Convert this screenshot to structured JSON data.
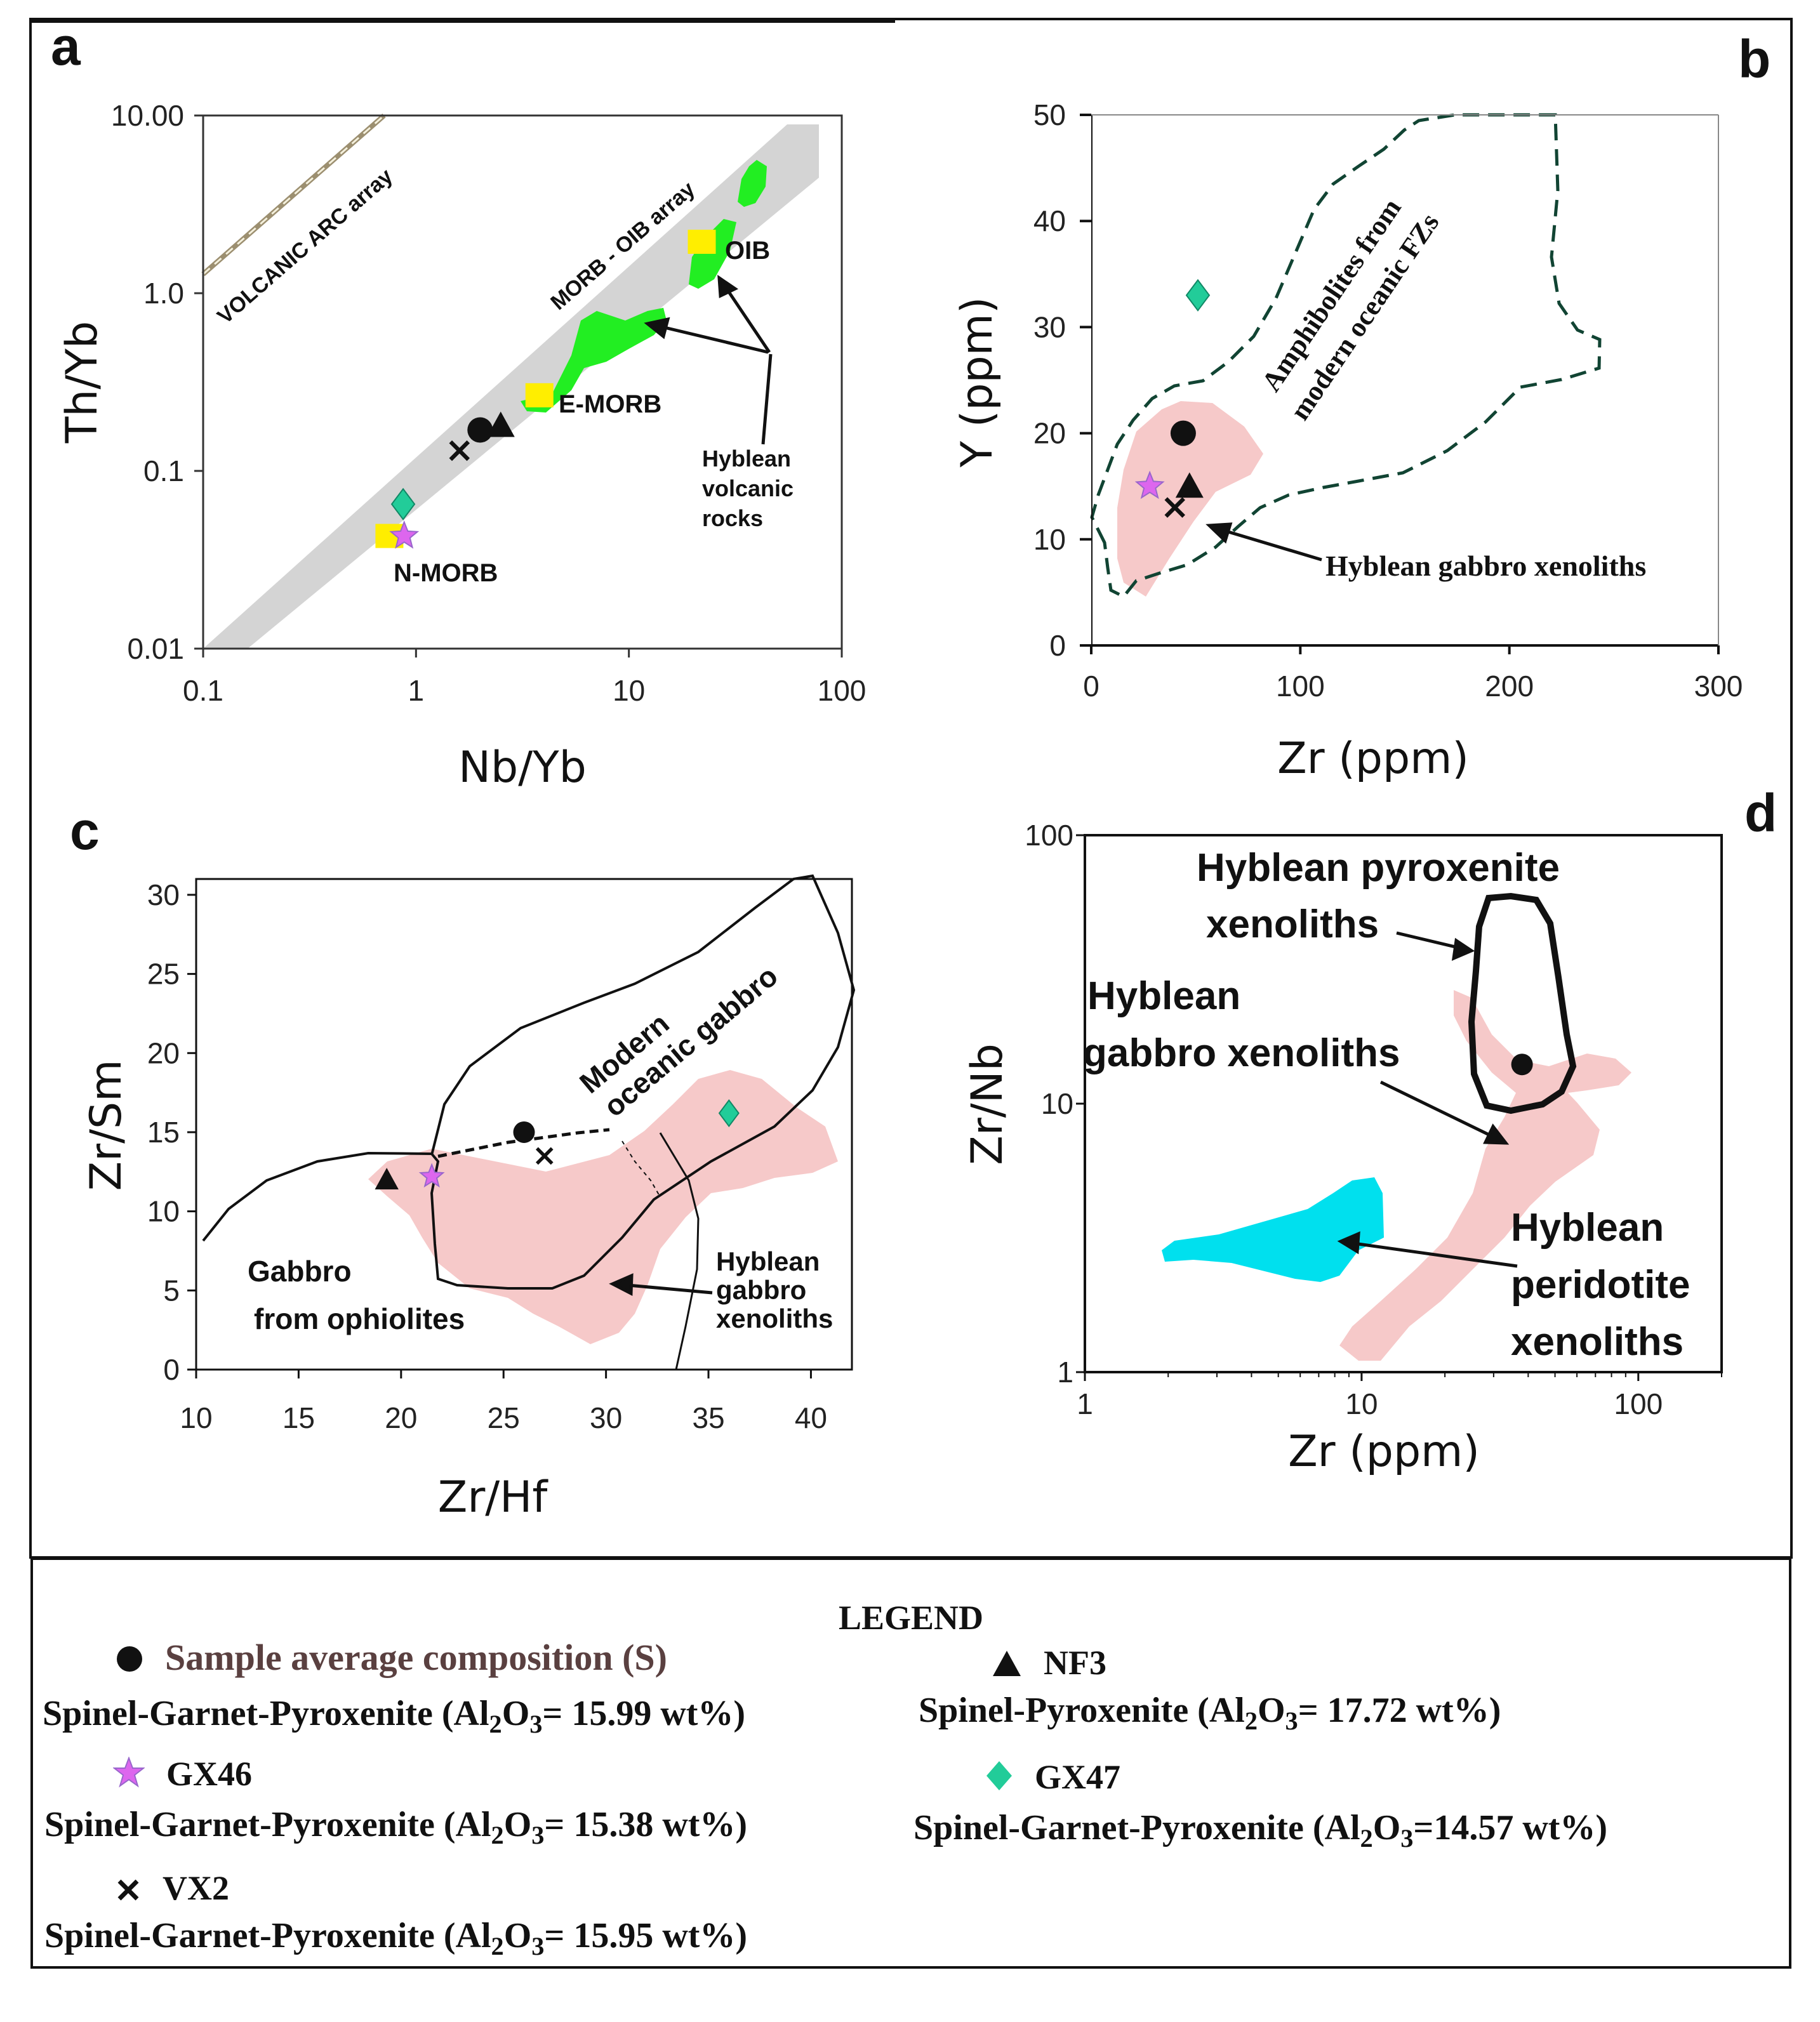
{
  "chart_data": [
    {
      "panel": "a",
      "type": "scatter",
      "xscale": "log",
      "yscale": "log",
      "xlim": [
        0.1,
        100
      ],
      "ylim": [
        0.01,
        10
      ],
      "xlabel": "Nb/Yb",
      "ylabel": "Th/Yb",
      "xticks": [
        "0.1",
        "1",
        "10",
        "100"
      ],
      "yticks": [
        "10.00",
        "1.0",
        "0.1",
        "0.01"
      ],
      "annotations": {
        "arc": "VOLCANIC ARC array",
        "morb": "MORB - OIB array",
        "oib": "OIB",
        "emorb": "E-MORB",
        "nmorb": "N-MORB",
        "hyb": [
          "Hyblean",
          "volcanic",
          "rocks"
        ]
      },
      "references": [
        {
          "name": "OIB",
          "x": 22,
          "y": 1.9
        },
        {
          "name": "E-MORB",
          "x": 3.8,
          "y": 0.26
        },
        {
          "name": "N-MORB",
          "x": 0.75,
          "y": 0.042
        }
      ],
      "points": [
        {
          "sample": "S",
          "x": 2.0,
          "y": 0.17
        },
        {
          "sample": "NF3",
          "x": 2.5,
          "y": 0.18
        },
        {
          "sample": "VX2",
          "x": 1.6,
          "y": 0.13
        },
        {
          "sample": "GX47",
          "x": 0.87,
          "y": 0.065
        },
        {
          "sample": "GX46",
          "x": 0.88,
          "y": 0.043
        }
      ]
    },
    {
      "panel": "b",
      "type": "scatter",
      "xlim": [
        0,
        300
      ],
      "ylim": [
        0,
        50
      ],
      "xlabel": "Zr (ppm)",
      "ylabel": "Y (ppm)",
      "xticks": [
        0,
        100,
        200,
        300
      ],
      "yticks": [
        0,
        10,
        20,
        30,
        40,
        50
      ],
      "annotations": {
        "amph": [
          "Amphibolites from",
          "modern oceanic FZs"
        ],
        "gab": "Hyblean gabbro xenoliths"
      },
      "points": [
        {
          "sample": "S",
          "x": 44,
          "y": 20
        },
        {
          "sample": "NF3",
          "x": 47,
          "y": 15
        },
        {
          "sample": "GX46",
          "x": 28,
          "y": 15
        },
        {
          "sample": "VX2",
          "x": 40,
          "y": 13
        },
        {
          "sample": "GX47",
          "x": 51,
          "y": 33
        }
      ]
    },
    {
      "panel": "c",
      "type": "scatter",
      "xlim": [
        10,
        42
      ],
      "ylim": [
        0,
        31
      ],
      "xlabel": "Zr/Hf",
      "ylabel": "Zr/Sm",
      "xticks": [
        10,
        15,
        20,
        25,
        30,
        35,
        40
      ],
      "yticks": [
        0,
        5,
        10,
        15,
        20,
        25,
        30
      ],
      "annotations": {
        "modern": [
          "Modern",
          "oceanic gabbro"
        ],
        "ophi": [
          "Gabbro",
          "from ophiolites"
        ],
        "hyb": [
          "Hyblean",
          "gabbro",
          "xenoliths"
        ]
      },
      "points": [
        {
          "sample": "S",
          "x": 26,
          "y": 15
        },
        {
          "sample": "NF3",
          "x": 19.3,
          "y": 12
        },
        {
          "sample": "GX46",
          "x": 21.5,
          "y": 12.2
        },
        {
          "sample": "VX2",
          "x": 27,
          "y": 13.5
        },
        {
          "sample": "GX47",
          "x": 36,
          "y": 16.2
        }
      ]
    },
    {
      "panel": "d",
      "type": "scatter",
      "xscale": "log",
      "yscale": "log",
      "xlim": [
        1,
        200
      ],
      "ylim": [
        1,
        100
      ],
      "xlabel": "Zr (ppm)",
      "ylabel": "Zr/Nb",
      "xticks": [
        "1",
        "10",
        "100"
      ],
      "yticks": [
        "100",
        "10",
        "1"
      ],
      "annotations": {
        "pyx": [
          "Hyblean pyroxenite",
          "xenoliths"
        ],
        "gab": [
          "Hyblean",
          "gabbro xenoliths"
        ],
        "per": [
          "Hyblean",
          "peridotite",
          "xenoliths"
        ]
      },
      "points": [
        {
          "sample": "S",
          "x": 38,
          "y": 14
        }
      ]
    }
  ],
  "legend": {
    "title": "LEGEND",
    "items": [
      {
        "id": "S",
        "name": "Sample average composition (S)",
        "rock": "Spinel-Garnet-Pyroxenite (Al",
        "ox": "2",
        "o": "O",
        "three": "3",
        "value": "= 15.99 wt%)",
        "color": "#111111",
        "symbol": "circle"
      },
      {
        "id": "NF3",
        "name": "NF3",
        "rock": "Spinel-Pyroxenite (Al",
        "ox": "2",
        "o": "O",
        "three": "3",
        "value": "= 17.72 wt%)",
        "color": "#111111",
        "symbol": "triangle"
      },
      {
        "id": "GX46",
        "name": "GX46",
        "rock": "Spinel-Garnet-Pyroxenite (Al",
        "ox": "2",
        "o": "O",
        "three": "3",
        "value": "= 15.38 wt%)",
        "color": "#dd66ee",
        "symbol": "star"
      },
      {
        "id": "GX47",
        "name": "GX47",
        "rock": "Spinel-Garnet-Pyroxenite (Al",
        "ox": "2",
        "o": "O",
        "three": "3",
        "value": "=14.57 wt%)",
        "color": "#22cc99",
        "symbol": "diamond"
      },
      {
        "id": "VX2",
        "name": "VX2",
        "rock": "Spinel-Garnet-Pyroxenite (Al",
        "ox": "2",
        "o": "O",
        "three": "3",
        "value": "= 15.95 wt%)",
        "color": "#111111",
        "symbol": "cross"
      }
    ]
  },
  "colors": {
    "pink": "#f6c9c9",
    "green": "#22ee22",
    "gray": "#d4d4d4",
    "cyan": "#00e0ee",
    "teal": "#114433",
    "yellow": "#ffee00"
  }
}
